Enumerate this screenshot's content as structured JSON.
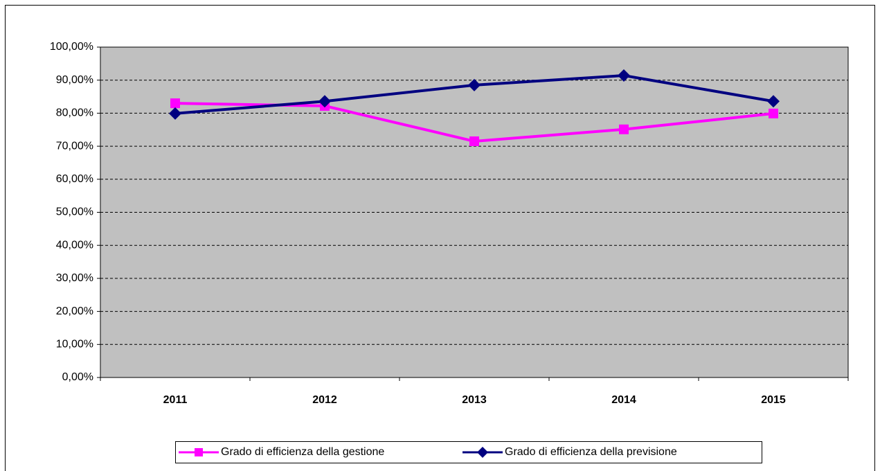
{
  "chart_data": {
    "type": "line",
    "categories": [
      "2011",
      "2012",
      "2013",
      "2014",
      "2015"
    ],
    "series": [
      {
        "name": "Grado di efficienza della gestione",
        "color": "#ff00ff",
        "marker": "square",
        "values": [
          83.0,
          82.2,
          71.5,
          75.1,
          79.9
        ]
      },
      {
        "name": "Grado di efficienza della previsione",
        "color": "#000080",
        "marker": "diamond",
        "values": [
          79.9,
          83.6,
          88.5,
          91.4,
          83.6
        ]
      }
    ],
    "ylim": [
      0,
      100
    ],
    "yticks": [
      {
        "value": 0,
        "label": "0,00%"
      },
      {
        "value": 10,
        "label": "10,00%"
      },
      {
        "value": 20,
        "label": "20,00%"
      },
      {
        "value": 30,
        "label": "30,00%"
      },
      {
        "value": 40,
        "label": "40,00%"
      },
      {
        "value": 50,
        "label": "50,00%"
      },
      {
        "value": 60,
        "label": "60,00%"
      },
      {
        "value": 70,
        "label": "70,00%"
      },
      {
        "value": 80,
        "label": "80,00%"
      },
      {
        "value": 90,
        "label": "90,00%"
      },
      {
        "value": 100,
        "label": "100,00%"
      }
    ],
    "grid": true,
    "plot_background": "#c0c0c0",
    "legend": "bottom"
  }
}
